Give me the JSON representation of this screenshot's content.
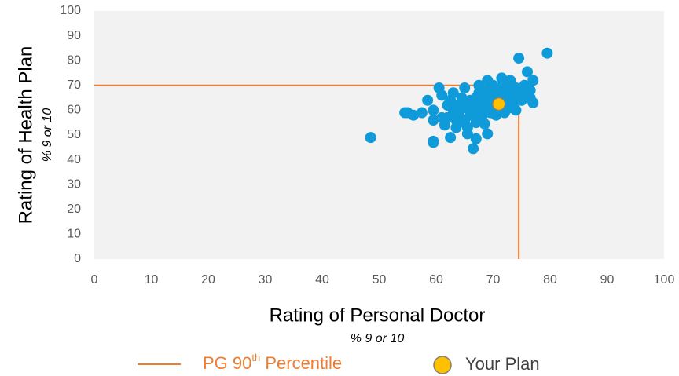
{
  "chart_data": {
    "type": "scatter",
    "xlabel": "Rating of Personal Doctor",
    "xsublabel": "% 9 or 10",
    "ylabel": "Rating of Health Plan",
    "ysublabel": "% 9 or 10",
    "xlim": [
      0,
      100
    ],
    "ylim": [
      0,
      100
    ],
    "xticks": [
      0,
      10,
      20,
      30,
      40,
      50,
      60,
      70,
      80,
      90,
      100
    ],
    "yticks": [
      0,
      10,
      20,
      30,
      40,
      50,
      60,
      70,
      80,
      90,
      100
    ],
    "color": "#0f9ad9",
    "x": [
      48.5,
      54.5,
      55,
      56,
      57.5,
      58.5,
      59.5,
      59.5,
      59.5,
      59.5,
      60.5,
      61,
      61,
      61.5,
      62,
      62.5,
      62.5,
      63,
      63,
      63.5,
      63.5,
      64,
      64,
      64.5,
      65,
      65,
      65.5,
      65.5,
      66,
      66,
      66,
      66.5,
      67,
      67,
      67,
      67.5,
      67.5,
      67.5,
      68,
      68,
      68,
      68.5,
      68.5,
      69,
      69,
      69,
      69,
      69.5,
      69.5,
      70,
      70,
      70,
      70.5,
      70.5,
      71,
      71,
      71.5,
      71.5,
      72,
      72,
      72,
      72.5,
      72.5,
      73,
      73,
      73,
      73.5,
      73.5,
      74,
      74,
      74,
      74.5,
      75,
      75.5,
      76,
      76,
      76.5,
      76.5,
      77,
      77,
      74.5,
      79.5,
      62,
      64,
      66,
      68.5,
      71,
      63,
      65,
      67
    ],
    "values": [
      49,
      59,
      59,
      58,
      59,
      64,
      60,
      56,
      47.5,
      47,
      69,
      66,
      57,
      54,
      62,
      64,
      49,
      67,
      60,
      56,
      53,
      62,
      58,
      65,
      69,
      56,
      53,
      50.5,
      64,
      60,
      62,
      44.5,
      48.5,
      58,
      55,
      67,
      62,
      70,
      64,
      60,
      57,
      66,
      63,
      72,
      68,
      61,
      50.5,
      65,
      59,
      70,
      67,
      63,
      61,
      58,
      69,
      66,
      73,
      64,
      68,
      62,
      59,
      66,
      70,
      72,
      65,
      61,
      68,
      63,
      69,
      65,
      60,
      67,
      64,
      70,
      75.5,
      66,
      68,
      65,
      72,
      63,
      81,
      83,
      57,
      55,
      58,
      54.5,
      60,
      62,
      61,
      65
    ],
    "reference": {
      "name": "PG 90",
      "name_sup": "th",
      "name_suffix": " Percentile",
      "x": 74.5,
      "y": 70,
      "color": "#ed7d31"
    },
    "highlight": {
      "name": "Your Plan",
      "x": 71,
      "y": 62.5,
      "color": "#ffc000"
    }
  }
}
